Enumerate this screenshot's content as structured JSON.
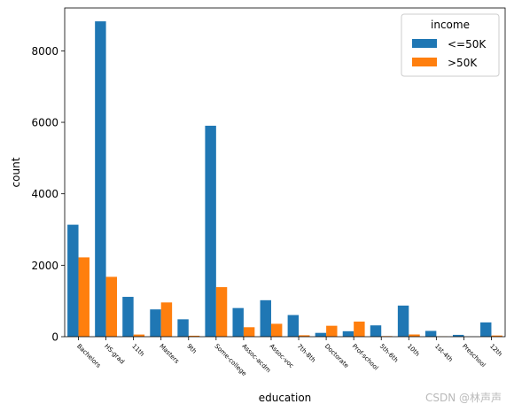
{
  "chart_data": {
    "type": "bar",
    "title": "",
    "xlabel": "education",
    "ylabel": "count",
    "ylim": [
      0,
      9200
    ],
    "yticks": [
      0,
      2000,
      4000,
      6000,
      8000
    ],
    "categories": [
      "Bachelors",
      "HS-grad",
      "11th",
      "Masters",
      "9th",
      "Some-college",
      "Assoc-acdm",
      "Assoc-voc",
      "7th-8th",
      "Doctorate",
      "Prof-school",
      "5th-6th",
      "10th",
      "1st-4th",
      "Preschool",
      "12th"
    ],
    "series": [
      {
        "name": "<=50K",
        "color": "#1f77b4",
        "values": [
          3134,
          8826,
          1115,
          764,
          487,
          5904,
          802,
          1021,
          606,
          107,
          153,
          317,
          871,
          162,
          51,
          400
        ]
      },
      {
        "name": ">50K",
        "color": "#ff7f0e",
        "values": [
          2221,
          1675,
          60,
          959,
          27,
          1387,
          265,
          361,
          40,
          306,
          423,
          16,
          62,
          6,
          0,
          33
        ]
      }
    ],
    "legend": {
      "title": "income",
      "position": "top-right"
    },
    "grid": false
  },
  "watermark": "CSDN @林声声"
}
